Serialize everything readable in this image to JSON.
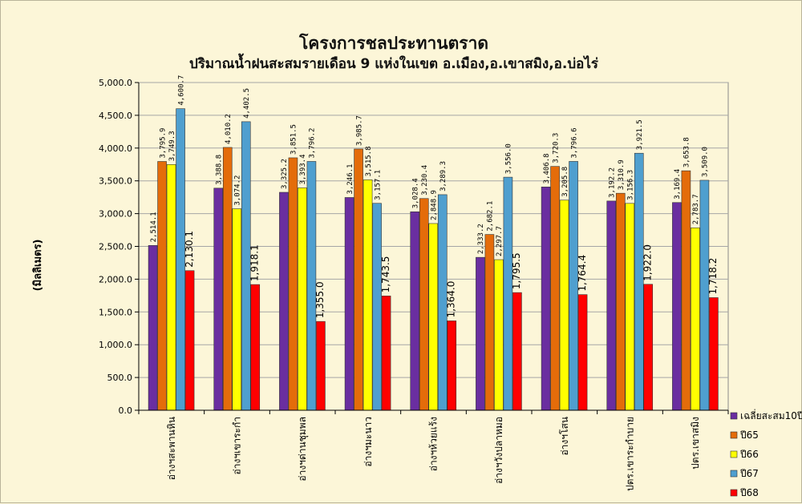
{
  "chart_data": {
    "type": "bar",
    "title": "โครงการชลประทานตราด",
    "subtitle": "ปริมาณน้ำฝนสะสมรายเดือน 9 แห่งในเขต อ.เมือง,อ.เขาสมิง,อ.บ่อไร่",
    "ylabel": "(มิลลิเมตร)",
    "ylim": [
      0,
      5000
    ],
    "yticks": [
      0,
      500,
      1000,
      1500,
      2000,
      2500,
      3000,
      3500,
      4000,
      4500,
      5000
    ],
    "ytick_labels": [
      "0.0",
      "500.0",
      "1,000.0",
      "1,500.0",
      "2,000.0",
      "2,500.0",
      "3,000.0",
      "3,500.0",
      "4,000.0",
      "4,500.0",
      "5,000.0"
    ],
    "grid": true,
    "legend_position": "right",
    "categories": [
      "อ่างฯสะพานหิน",
      "อ่างฯเขาระกำ",
      "อ่างฯด่านชุมพล",
      "อ่างฯมะนาว",
      "อ่างฯห้วยแร้ง",
      "อ่างฯวังปลาหมอ",
      "อ่างฯโสน",
      "ปตร.เขาระกำบาย",
      "ปตร.เขาสมิง"
    ],
    "series": [
      {
        "name": "เฉลี่ยสะสม10ปี",
        "color": "#6a2ea0",
        "values": [
          2514.1,
          3388.8,
          3325.2,
          3246.1,
          3028.4,
          2333.2,
          3406.8,
          3192.2,
          3169.4
        ],
        "labels": [
          "2,514.1",
          "3,388.8",
          "3,325.2",
          "3,246.1",
          "3,028.4",
          "2,333.2",
          "3,406.8",
          "3,192.2",
          "3,169.4"
        ]
      },
      {
        "name": "ปี65",
        "color": "#e46c0a",
        "values": [
          3795.9,
          4010.2,
          3851.5,
          3985.7,
          3230.4,
          2682.1,
          3720.3,
          3310.9,
          3653.8
        ],
        "labels": [
          "3,795.9",
          "4,010.2",
          "3,851.5",
          "3,985.7",
          "3,230.4",
          "2,682.1",
          "3,720.3",
          "3,310.9",
          "3,653.8"
        ]
      },
      {
        "name": "ปี66",
        "color": "#ffff00",
        "values": [
          3749.3,
          3074.2,
          3393.4,
          3515.8,
          2848.9,
          2297.7,
          3205.8,
          3156.3,
          2783.7
        ],
        "labels": [
          "3,749.3",
          "3,074.2",
          "3,393.4",
          "3,515.8",
          "2,848.9",
          "2,297.7",
          "3,205.8",
          "3,156.3",
          "2,783.7"
        ]
      },
      {
        "name": "ปี67",
        "color": "#4f9fcf",
        "values": [
          4600.7,
          4402.5,
          3796.2,
          3157.1,
          3289.3,
          3556.0,
          3796.6,
          3921.5,
          3509.0
        ],
        "labels": [
          "4,600.7",
          "4,402.5",
          "3,796.2",
          "3,157.1",
          "3,289.3",
          "3,556.0",
          "3,796.6",
          "3,921.5",
          "3,509.0"
        ]
      },
      {
        "name": "ปี68",
        "color": "#ff0000",
        "values": [
          2130.1,
          1918.1,
          1355.0,
          1743.5,
          1364.0,
          1795.5,
          1764.4,
          1922.0,
          1718.2
        ],
        "labels": [
          "2,130.1",
          "1,918.1",
          "1,355.0",
          "1,743.5",
          "1,364.0",
          "1,795.5",
          "1,764.4",
          "1,922.0",
          "1,718.2"
        ]
      }
    ]
  }
}
